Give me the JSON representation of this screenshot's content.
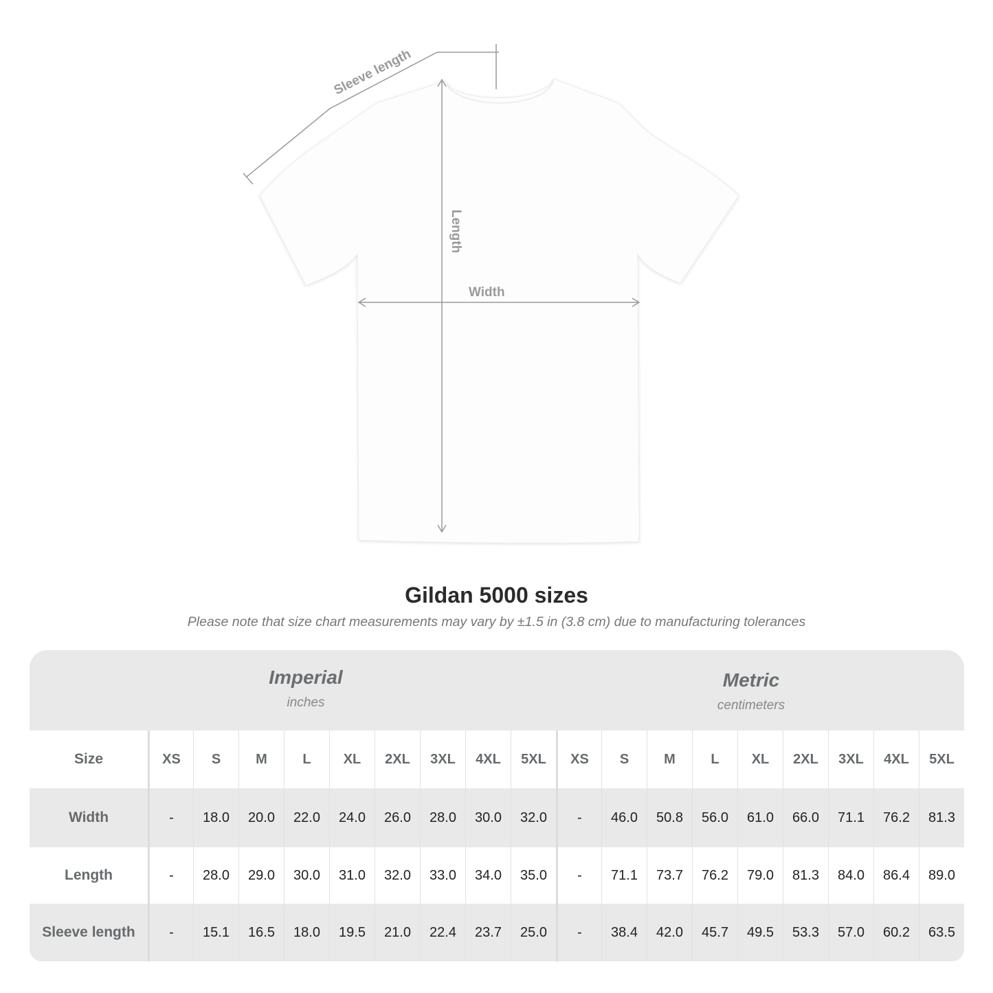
{
  "diagram": {
    "labels": {
      "sleeve_length": "Sleeve length",
      "length": "Length",
      "width": "Width"
    }
  },
  "title": "Gildan 5000 sizes",
  "subtitle": "Please note that size chart measurements may vary by ±1.5 in (3.8 cm) due to manufacturing tolerances",
  "table": {
    "imperial": {
      "name": "Imperial",
      "unit": "inches"
    },
    "metric": {
      "name": "Metric",
      "unit": "centimeters"
    },
    "size_label": "Size",
    "sizes": [
      "XS",
      "S",
      "M",
      "L",
      "XL",
      "2XL",
      "3XL",
      "4XL",
      "5XL"
    ],
    "rows": [
      {
        "label": "Width",
        "imperial": [
          "-",
          "18.0",
          "20.0",
          "22.0",
          "24.0",
          "26.0",
          "28.0",
          "30.0",
          "32.0"
        ],
        "metric": [
          "-",
          "46.0",
          "50.8",
          "56.0",
          "61.0",
          "66.0",
          "71.1",
          "76.2",
          "81.3"
        ]
      },
      {
        "label": "Length",
        "imperial": [
          "-",
          "28.0",
          "29.0",
          "30.0",
          "31.0",
          "32.0",
          "33.0",
          "34.0",
          "35.0"
        ],
        "metric": [
          "-",
          "71.1",
          "73.7",
          "76.2",
          "79.0",
          "81.3",
          "84.0",
          "86.4",
          "89.0"
        ]
      },
      {
        "label": "Sleeve length",
        "imperial": [
          "-",
          "15.1",
          "16.5",
          "18.0",
          "19.5",
          "21.0",
          "22.4",
          "23.7",
          "25.0"
        ],
        "metric": [
          "-",
          "38.4",
          "42.0",
          "45.7",
          "49.5",
          "53.3",
          "57.0",
          "60.2",
          "63.5"
        ]
      }
    ]
  },
  "colors": {
    "band": "#e9e9e9",
    "header_text": "#666a6c",
    "measure_line": "#9a9a9a"
  }
}
